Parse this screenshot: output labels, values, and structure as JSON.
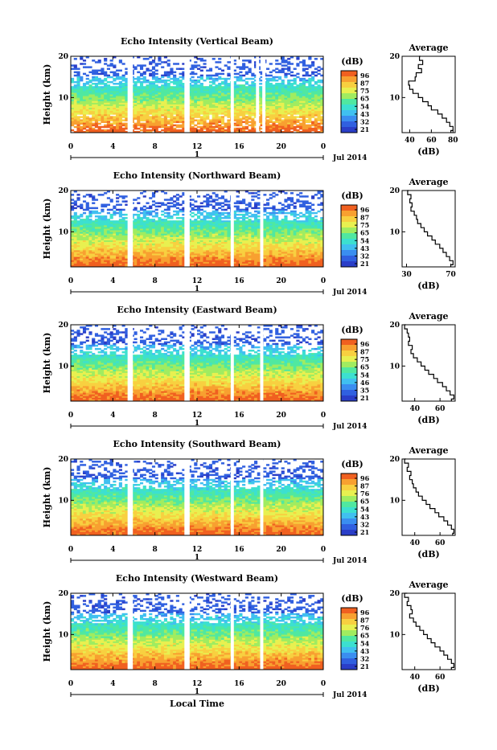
{
  "colors": {
    "scale": [
      "#2a3ec8",
      "#3060e0",
      "#3a8ef0",
      "#40c0f0",
      "#3ce0d0",
      "#50e8a0",
      "#a0ec60",
      "#e8f050",
      "#f8d040",
      "#f8a030",
      "#f06020"
    ],
    "gap": "#ffffff",
    "axis": "#000000",
    "profile_line": "#000000"
  },
  "footer": {
    "xlabel": "Local Time"
  },
  "chart_data": [
    {
      "type": "heatmap",
      "title": "Echo Intensity (Vertical Beam)",
      "ylabel": "Height (km)",
      "x_ticks": [
        "0",
        "4",
        "8",
        "12",
        "16",
        "20",
        "0"
      ],
      "y_ticks": [
        "20",
        "10"
      ],
      "xlim": [
        0,
        24
      ],
      "ylim": [
        1.5,
        20
      ],
      "day_label": "1",
      "date_label": "Jul 2014",
      "colorbar": {
        "unit": "(dB)",
        "ticks": [
          "96",
          "87",
          "75",
          "65",
          "54",
          "43",
          "32",
          "21"
        ],
        "range": [
          21,
          96
        ]
      },
      "data_gaps_hours": [
        [
          5.4,
          5.9
        ],
        [
          10.8,
          11.3
        ],
        [
          15.2,
          15.5
        ],
        [
          17.6,
          17.9
        ],
        [
          18.2,
          18.5
        ]
      ],
      "profile": {
        "title": "Average",
        "xlabel": "(dB)",
        "x_ticks": [
          "40",
          "60",
          "80"
        ],
        "y_ticks": [
          "20",
          "10"
        ],
        "xlim": [
          33,
          82
        ],
        "points": [
          [
            20,
            50
          ],
          [
            19,
            49
          ],
          [
            18,
            52
          ],
          [
            17,
            48
          ],
          [
            16,
            51
          ],
          [
            15,
            46
          ],
          [
            14,
            45
          ],
          [
            13,
            39
          ],
          [
            12,
            40
          ],
          [
            11,
            43
          ],
          [
            10,
            48
          ],
          [
            9,
            52
          ],
          [
            8,
            57
          ],
          [
            7,
            60
          ],
          [
            6,
            66
          ],
          [
            5,
            70
          ],
          [
            4,
            74
          ],
          [
            3,
            77
          ],
          [
            2,
            80
          ],
          [
            1.5,
            78
          ]
        ]
      }
    },
    {
      "type": "heatmap",
      "title": "Echo Intensity (Northward Beam)",
      "ylabel": "Height (km)",
      "x_ticks": [
        "0",
        "4",
        "8",
        "12",
        "16",
        "20",
        "0"
      ],
      "y_ticks": [
        "20",
        "10"
      ],
      "xlim": [
        0,
        24
      ],
      "ylim": [
        1.5,
        20
      ],
      "day_label": "1",
      "date_label": "Jul 2014",
      "colorbar": {
        "unit": "(dB)",
        "ticks": [
          "96",
          "87",
          "75",
          "65",
          "54",
          "43",
          "32",
          "21"
        ],
        "range": [
          21,
          96
        ]
      },
      "data_gaps_hours": [
        [
          5.4,
          5.9
        ],
        [
          10.8,
          11.3
        ],
        [
          15.2,
          15.5
        ],
        [
          18.0,
          18.3
        ]
      ],
      "profile": {
        "title": "Average",
        "xlabel": "(dB)",
        "x_ticks": [
          "30",
          "70"
        ],
        "y_ticks": [
          "20",
          "10"
        ],
        "xlim": [
          26,
          74
        ],
        "points": [
          [
            20,
            32
          ],
          [
            19,
            31
          ],
          [
            18,
            34
          ],
          [
            17,
            33
          ],
          [
            16,
            35
          ],
          [
            15,
            34
          ],
          [
            14,
            37
          ],
          [
            13,
            39
          ],
          [
            12,
            40
          ],
          [
            11,
            43
          ],
          [
            10,
            46
          ],
          [
            9,
            49
          ],
          [
            8,
            53
          ],
          [
            7,
            56
          ],
          [
            6,
            60
          ],
          [
            5,
            63
          ],
          [
            4,
            66
          ],
          [
            3,
            69
          ],
          [
            2,
            72
          ],
          [
            1.5,
            70
          ]
        ]
      }
    },
    {
      "type": "heatmap",
      "title": "Echo Intensity (Eastward Beam)",
      "ylabel": "Height (km)",
      "x_ticks": [
        "0",
        "4",
        "8",
        "12",
        "16",
        "20",
        "0"
      ],
      "y_ticks": [
        "20",
        "10"
      ],
      "xlim": [
        0,
        24
      ],
      "ylim": [
        1.5,
        20
      ],
      "day_label": "1",
      "date_label": "Jul 2014",
      "colorbar": {
        "unit": "(dB)",
        "ticks": [
          "96",
          "87",
          "75",
          "65",
          "54",
          "46",
          "35",
          "21"
        ],
        "range": [
          21,
          96
        ]
      },
      "data_gaps_hours": [
        [
          5.4,
          5.9
        ],
        [
          10.8,
          11.3
        ],
        [
          15.2,
          15.5
        ],
        [
          18.0,
          18.3
        ]
      ],
      "profile": {
        "title": "Average",
        "xlabel": "(dB)",
        "x_ticks": [
          "40",
          "60"
        ],
        "y_ticks": [
          "20",
          "10"
        ],
        "xlim": [
          30,
          72
        ],
        "points": [
          [
            20,
            33
          ],
          [
            19,
            32
          ],
          [
            18,
            34
          ],
          [
            17,
            35
          ],
          [
            16,
            36
          ],
          [
            15,
            35
          ],
          [
            14,
            38
          ],
          [
            13,
            37
          ],
          [
            12,
            39
          ],
          [
            11,
            42
          ],
          [
            10,
            45
          ],
          [
            9,
            48
          ],
          [
            8,
            51
          ],
          [
            7,
            55
          ],
          [
            6,
            58
          ],
          [
            5,
            62
          ],
          [
            4,
            65
          ],
          [
            3,
            68
          ],
          [
            2,
            71
          ],
          [
            1.5,
            69
          ]
        ]
      }
    },
    {
      "type": "heatmap",
      "title": "Echo Intensity (Southward Beam)",
      "ylabel": "Height (km)",
      "x_ticks": [
        "0",
        "4",
        "8",
        "12",
        "16",
        "20",
        "0"
      ],
      "y_ticks": [
        "20",
        "10"
      ],
      "xlim": [
        0,
        24
      ],
      "ylim": [
        1.5,
        20
      ],
      "day_label": "1",
      "date_label": "Jul 2014",
      "colorbar": {
        "unit": "(dB)",
        "ticks": [
          "96",
          "87",
          "76",
          "65",
          "54",
          "43",
          "32",
          "21"
        ],
        "range": [
          21,
          96
        ]
      },
      "data_gaps_hours": [
        [
          5.4,
          5.9
        ],
        [
          10.8,
          11.3
        ],
        [
          15.2,
          15.5
        ],
        [
          18.0,
          18.3
        ]
      ],
      "profile": {
        "title": "Average",
        "xlabel": "(dB)",
        "x_ticks": [
          "40",
          "60"
        ],
        "y_ticks": [
          "20",
          "10"
        ],
        "xlim": [
          30,
          72
        ],
        "points": [
          [
            20,
            33
          ],
          [
            19,
            32
          ],
          [
            18,
            35
          ],
          [
            17,
            34
          ],
          [
            16,
            37
          ],
          [
            15,
            36
          ],
          [
            14,
            38
          ],
          [
            13,
            39
          ],
          [
            12,
            41
          ],
          [
            11,
            43
          ],
          [
            10,
            46
          ],
          [
            9,
            49
          ],
          [
            8,
            52
          ],
          [
            7,
            56
          ],
          [
            6,
            59
          ],
          [
            5,
            63
          ],
          [
            4,
            66
          ],
          [
            3,
            69
          ],
          [
            2,
            71
          ],
          [
            1.5,
            70
          ]
        ]
      }
    },
    {
      "type": "heatmap",
      "title": "Echo Intensity (Westward Beam)",
      "ylabel": "Height (km)",
      "x_ticks": [
        "0",
        "4",
        "8",
        "12",
        "16",
        "20",
        "0"
      ],
      "y_ticks": [
        "20",
        "10"
      ],
      "xlim": [
        0,
        24
      ],
      "ylim": [
        1.5,
        20
      ],
      "day_label": "1",
      "date_label": "Jul 2014",
      "colorbar": {
        "unit": "(dB)",
        "ticks": [
          "96",
          "87",
          "76",
          "65",
          "54",
          "43",
          "32",
          "21"
        ],
        "range": [
          21,
          96
        ]
      },
      "data_gaps_hours": [
        [
          5.4,
          5.9
        ],
        [
          10.8,
          11.3
        ],
        [
          15.2,
          15.5
        ],
        [
          18.0,
          18.3
        ]
      ],
      "profile": {
        "title": "Average",
        "xlabel": "(dB)",
        "x_ticks": [
          "40",
          "60"
        ],
        "y_ticks": [
          "20",
          "10"
        ],
        "xlim": [
          30,
          72
        ],
        "points": [
          [
            20,
            34
          ],
          [
            19,
            32
          ],
          [
            18,
            35
          ],
          [
            17,
            34
          ],
          [
            16,
            37
          ],
          [
            15,
            38
          ],
          [
            14,
            36
          ],
          [
            13,
            39
          ],
          [
            12,
            41
          ],
          [
            11,
            44
          ],
          [
            10,
            47
          ],
          [
            9,
            50
          ],
          [
            8,
            53
          ],
          [
            7,
            56
          ],
          [
            6,
            60
          ],
          [
            5,
            63
          ],
          [
            4,
            66
          ],
          [
            3,
            69
          ],
          [
            2,
            71
          ],
          [
            1.5,
            69
          ]
        ]
      }
    }
  ]
}
